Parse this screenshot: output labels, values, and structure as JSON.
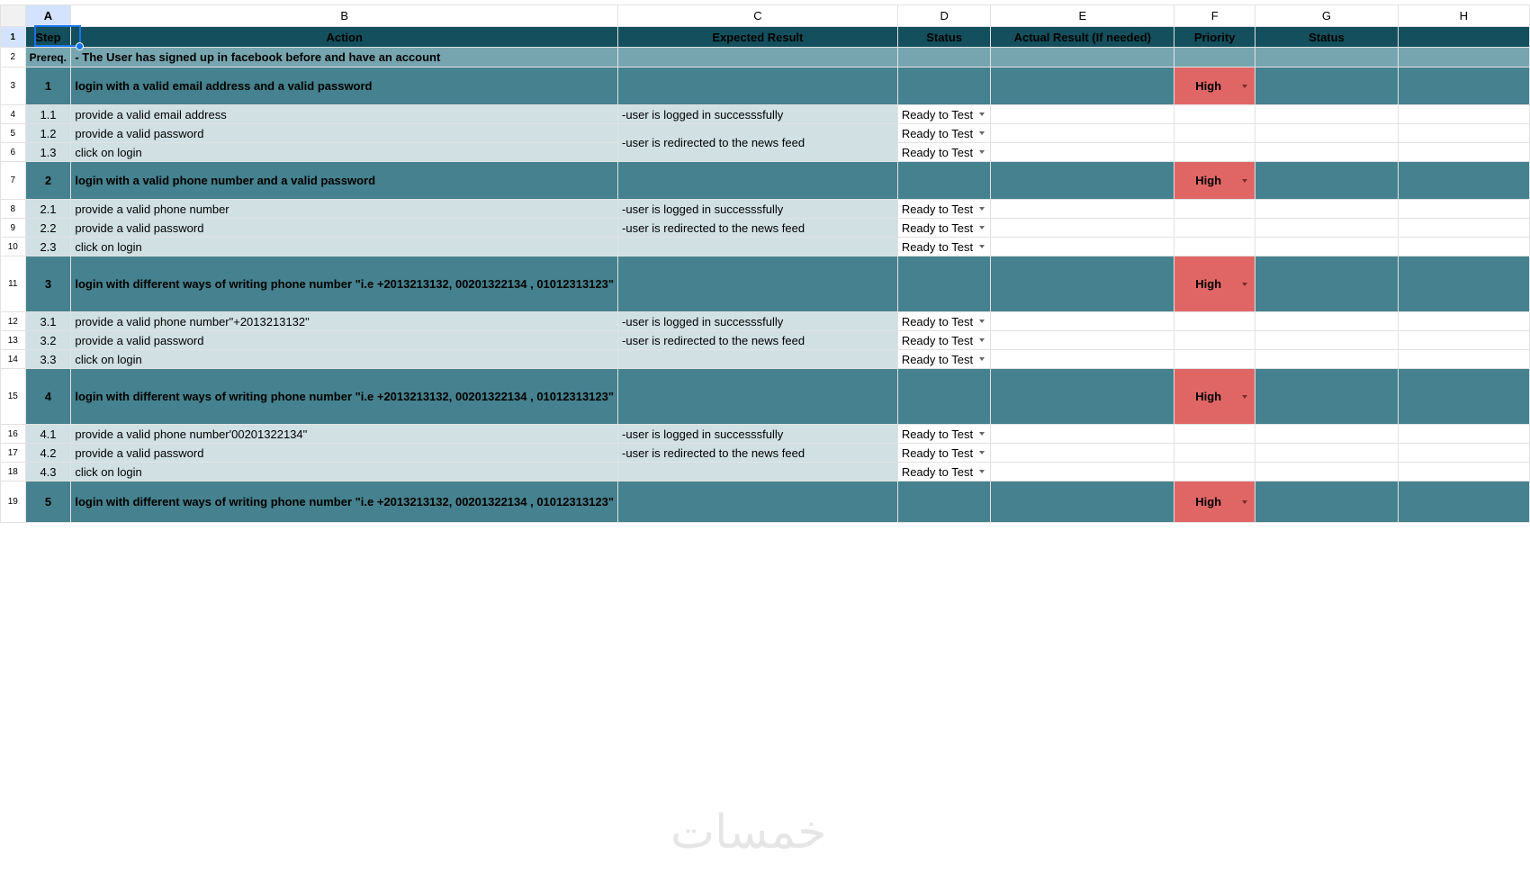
{
  "columns": [
    "A",
    "B",
    "C",
    "D",
    "E",
    "F",
    "G",
    "H"
  ],
  "header": {
    "row": "1",
    "cells": [
      "Step",
      "Action",
      "Expected Result",
      "Status",
      "Actual Result (If needed)",
      "Priority",
      "Status",
      ""
    ]
  },
  "prereq": {
    "row": "2",
    "label": "Prereq.",
    "text": "- The User has signed up in facebook before and  have an account"
  },
  "groups": [
    {
      "row": "3",
      "step": "1",
      "title": "login with a valid email address and a valid password",
      "priority": "High",
      "subs": [
        {
          "row": "4",
          "step": "1.1",
          "action": "provide a valid email address",
          "expected": "-user is logged in successsfully",
          "status": "Ready to Test"
        },
        {
          "row": "5",
          "step": "1.2",
          "action": "provide a valid password",
          "expected": "-user is redirected to the news feed",
          "status": "Ready to Test",
          "merge": 2
        },
        {
          "row": "6",
          "step": "1.3",
          "action": "click on login",
          "status": "Ready to Test",
          "merged": true
        }
      ]
    },
    {
      "row": "7",
      "step": "2",
      "title": "login with a valid phone number and a valid password",
      "priority": "High",
      "subs": [
        {
          "row": "8",
          "step": "2.1",
          "action": "provide a valid phone number",
          "expected": "-user is logged in successsfully",
          "status": "Ready to Test"
        },
        {
          "row": "9",
          "step": "2.2",
          "action": "provide a valid password",
          "expected": "-user is redirected to the news feed",
          "status": "Ready to Test"
        },
        {
          "row": "10",
          "step": "2.3",
          "action": "click on login",
          "expected": "",
          "status": "Ready to Test"
        }
      ]
    },
    {
      "row": "11",
      "step": "3",
      "title": "login with different ways of writing phone number \"i.e +2013213132,  00201322134 , 01012313123\"",
      "priority": "High",
      "subs": [
        {
          "row": "12",
          "step": "3.1",
          "action": "provide a valid phone number\"+2013213132\"",
          "expected": "-user is logged in successsfully",
          "status": "Ready to Test"
        },
        {
          "row": "13",
          "step": "3.2",
          "action": "provide a valid password",
          "expected": "-user is redirected to the news feed",
          "status": "Ready to Test"
        },
        {
          "row": "14",
          "step": "3.3",
          "action": "click on login",
          "expected": "",
          "status": "Ready to Test"
        }
      ]
    },
    {
      "row": "15",
      "step": "4",
      "title": "login with different ways of writing phone number \"i.e +2013213132,  00201322134 , 01012313123\"",
      "priority": "High",
      "subs": [
        {
          "row": "16",
          "step": "4.1",
          "action": "provide a valid phone number'00201322134\"",
          "expected": "-user is logged in successsfully",
          "status": "Ready to Test"
        },
        {
          "row": "17",
          "step": "4.2",
          "action": "provide a valid password",
          "expected": "-user is redirected to the news feed",
          "status": "Ready to Test"
        },
        {
          "row": "18",
          "step": "4.3",
          "action": "click on login",
          "expected": "",
          "status": "Ready to Test"
        }
      ]
    },
    {
      "row": "19",
      "step": "5",
      "title": "login with different ways of writing phone number \"i.e +2013213132,  00201322134 , 01012313123\"",
      "priority": "High",
      "subs": []
    }
  ],
  "watermark": "خمسات",
  "colors": {
    "header": "#134f5c",
    "prereq": "#76a5af",
    "group": "#45818e",
    "sub": "#d0e0e3",
    "high": "#e06666",
    "selection": "#1a73e8"
  }
}
